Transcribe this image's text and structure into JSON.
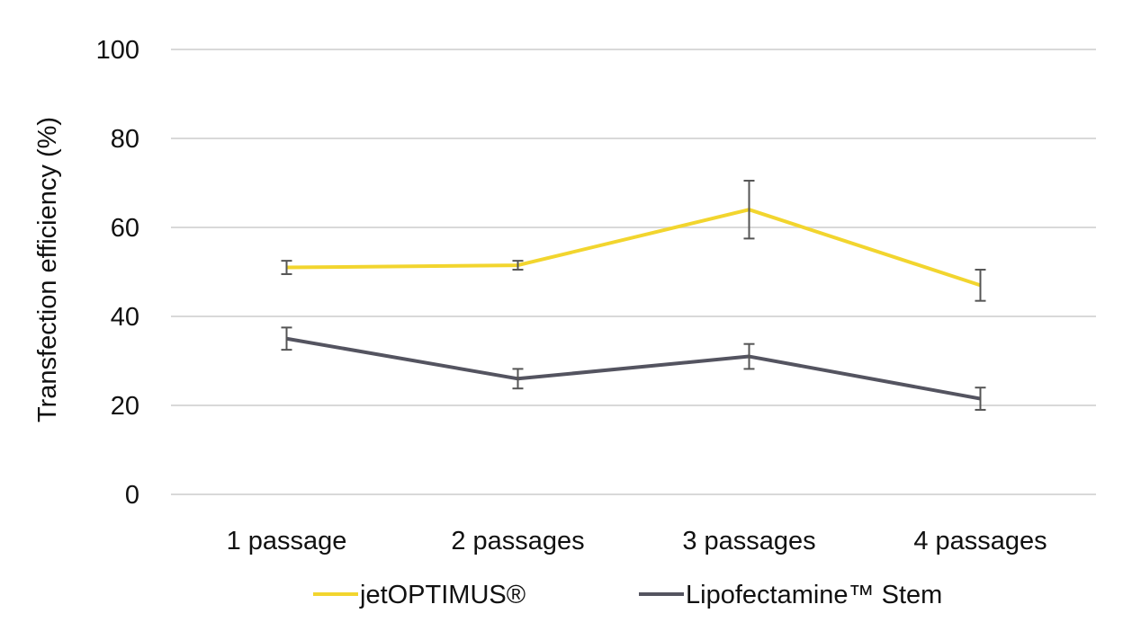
{
  "chart_data": {
    "type": "line",
    "title": "",
    "xlabel": "",
    "ylabel": "Transfection efficiency (%)",
    "ylim": [
      0,
      100
    ],
    "yticks": [
      0,
      20,
      40,
      60,
      80,
      100
    ],
    "grid": true,
    "legend_position": "bottom",
    "categories": [
      "1 passage",
      "2 passages",
      "3 passages",
      "4 passages"
    ],
    "series": [
      {
        "name": "jetOPTIMUS®",
        "color": "#f2d52e",
        "values": [
          51,
          51.5,
          64,
          47
        ],
        "error": [
          1.5,
          1,
          6.5,
          3.5
        ]
      },
      {
        "name": "Lipofectamine™ Stem",
        "color": "#545460",
        "values": [
          35,
          26,
          31,
          21.5
        ],
        "error": [
          2.5,
          2.2,
          2.8,
          2.5
        ]
      }
    ]
  }
}
